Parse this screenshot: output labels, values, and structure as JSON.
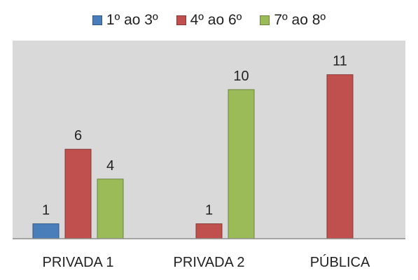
{
  "chart_data": {
    "type": "bar",
    "title": "",
    "xlabel": "",
    "ylabel": "",
    "categories": [
      "PRIVADA 1",
      "PRIVADA 2",
      "PÚBLICA"
    ],
    "series": [
      {
        "name": "1º ao 3º",
        "color": "#4a7ebb",
        "values": [
          1,
          null,
          null
        ]
      },
      {
        "name": "4º ao 6º",
        "color": "#c0504d",
        "values": [
          6,
          1,
          11
        ]
      },
      {
        "name": "7º ao 8º",
        "color": "#9bbb59",
        "values": [
          4,
          10,
          null
        ]
      }
    ],
    "ylim": [
      0,
      12
    ],
    "legend_position": "top",
    "grid": false,
    "data_labels": true,
    "plot_background": "#d9d9d9"
  }
}
